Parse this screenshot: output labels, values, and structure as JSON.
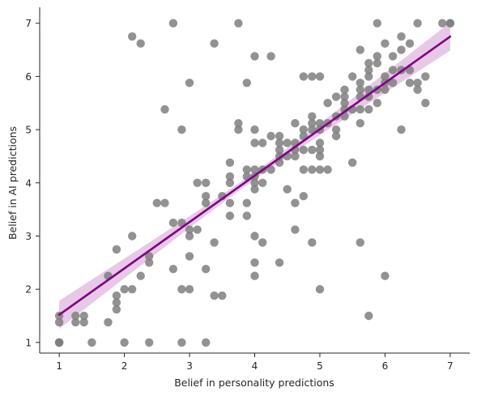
{
  "chart_data": {
    "type": "scatter",
    "title": "",
    "xlabel": "Belief in personality predictions",
    "ylabel": "Belief in AI predictions",
    "xlim": [
      0.7,
      7.3
    ],
    "ylim": [
      0.8,
      7.3
    ],
    "xticks": [
      1,
      2,
      3,
      4,
      5,
      6,
      7
    ],
    "yticks": [
      1,
      2,
      3,
      4,
      5,
      6,
      7
    ],
    "grid": false,
    "legend": "none",
    "colors": {
      "points": "#7f7f7f",
      "regression_line": "#800080",
      "confidence_band": "#dfb7df",
      "axis": "#262626"
    },
    "series": [
      {
        "values": [
          [
            1,
            1
          ],
          [
            1,
            1
          ],
          [
            1,
            1
          ],
          [
            1,
            1.38
          ],
          [
            1,
            1.5
          ],
          [
            1.25,
            1.38
          ],
          [
            1.25,
            1.5
          ],
          [
            1.38,
            1.38
          ],
          [
            1.38,
            1.5
          ],
          [
            1.5,
            1
          ],
          [
            1.75,
            1.38
          ],
          [
            1.75,
            2.25
          ],
          [
            1.88,
            1.62
          ],
          [
            1.88,
            1.75
          ],
          [
            1.88,
            1.88
          ],
          [
            1.88,
            2.75
          ],
          [
            2,
            1
          ],
          [
            2,
            2
          ],
          [
            2.12,
            2
          ],
          [
            2.12,
            3
          ],
          [
            2.12,
            6.75
          ],
          [
            2.25,
            2.25
          ],
          [
            2.25,
            6.62
          ],
          [
            2.38,
            1
          ],
          [
            2.38,
            2.5
          ],
          [
            2.38,
            2.62
          ],
          [
            2.5,
            3.62
          ],
          [
            2.62,
            3.62
          ],
          [
            2.62,
            5.38
          ],
          [
            2.75,
            2.38
          ],
          [
            2.75,
            3.25
          ],
          [
            2.75,
            7
          ],
          [
            2.88,
            1
          ],
          [
            2.88,
            2
          ],
          [
            2.88,
            3.25
          ],
          [
            2.88,
            5
          ],
          [
            3,
            2
          ],
          [
            3,
            2.62
          ],
          [
            3,
            3
          ],
          [
            3,
            3.12
          ],
          [
            3,
            5.88
          ],
          [
            3.12,
            3.12
          ],
          [
            3.12,
            4
          ],
          [
            3.25,
            1
          ],
          [
            3.25,
            2.38
          ],
          [
            3.25,
            3.62
          ],
          [
            3.25,
            3.75
          ],
          [
            3.25,
            4
          ],
          [
            3.38,
            1.88
          ],
          [
            3.38,
            2.88
          ],
          [
            3.38,
            6.62
          ],
          [
            3.5,
            1.88
          ],
          [
            3.5,
            3.75
          ],
          [
            3.62,
            3.38
          ],
          [
            3.62,
            3.62
          ],
          [
            3.62,
            4
          ],
          [
            3.62,
            4.12
          ],
          [
            3.62,
            4.38
          ],
          [
            3.75,
            5
          ],
          [
            3.75,
            5.12
          ],
          [
            3.75,
            7
          ],
          [
            3.88,
            3.38
          ],
          [
            3.88,
            3.62
          ],
          [
            3.88,
            4.12
          ],
          [
            3.88,
            4.25
          ],
          [
            3.88,
            5.88
          ],
          [
            4,
            2.25
          ],
          [
            4,
            2.5
          ],
          [
            4,
            3
          ],
          [
            4,
            3.88
          ],
          [
            4,
            4
          ],
          [
            4,
            4.12
          ],
          [
            4,
            4.25
          ],
          [
            4,
            4.75
          ],
          [
            4,
            5
          ],
          [
            4,
            6.38
          ],
          [
            4.12,
            2.88
          ],
          [
            4.12,
            4
          ],
          [
            4.12,
            4.25
          ],
          [
            4.12,
            4.75
          ],
          [
            4.25,
            4.25
          ],
          [
            4.25,
            4.88
          ],
          [
            4.25,
            6.38
          ],
          [
            4.38,
            2.5
          ],
          [
            4.38,
            4.38
          ],
          [
            4.38,
            4.5
          ],
          [
            4.38,
            4.62
          ],
          [
            4.38,
            4.75
          ],
          [
            4.38,
            4.88
          ],
          [
            4.5,
            3.88
          ],
          [
            4.5,
            4.5
          ],
          [
            4.5,
            4.75
          ],
          [
            4.62,
            3.12
          ],
          [
            4.62,
            3.62
          ],
          [
            4.62,
            4.5
          ],
          [
            4.62,
            4.62
          ],
          [
            4.62,
            4.75
          ],
          [
            4.62,
            5.12
          ],
          [
            4.75,
            3.75
          ],
          [
            4.75,
            4.25
          ],
          [
            4.75,
            4.62
          ],
          [
            4.75,
            4.88
          ],
          [
            4.75,
            5
          ],
          [
            4.75,
            6
          ],
          [
            4.88,
            2.88
          ],
          [
            4.88,
            4.25
          ],
          [
            4.88,
            4.62
          ],
          [
            4.88,
            5
          ],
          [
            4.88,
            5.12
          ],
          [
            4.88,
            5.25
          ],
          [
            4.88,
            6
          ],
          [
            5,
            2
          ],
          [
            5,
            4.25
          ],
          [
            5,
            4.5
          ],
          [
            5,
            4.62
          ],
          [
            5,
            4.75
          ],
          [
            5,
            5
          ],
          [
            5,
            5.12
          ],
          [
            5,
            6
          ],
          [
            5.12,
            4.25
          ],
          [
            5.12,
            5.12
          ],
          [
            5.12,
            5.5
          ],
          [
            5.25,
            4.88
          ],
          [
            5.25,
            5
          ],
          [
            5.25,
            5.25
          ],
          [
            5.25,
            5.62
          ],
          [
            5.38,
            5.25
          ],
          [
            5.38,
            5.38
          ],
          [
            5.38,
            5.5
          ],
          [
            5.38,
            5.62
          ],
          [
            5.38,
            5.75
          ],
          [
            5.5,
            4.38
          ],
          [
            5.5,
            5.38
          ],
          [
            5.5,
            6
          ],
          [
            5.62,
            2.88
          ],
          [
            5.62,
            5.12
          ],
          [
            5.62,
            5.38
          ],
          [
            5.62,
            5.62
          ],
          [
            5.62,
            5.75
          ],
          [
            5.62,
            5.88
          ],
          [
            5.62,
            6.5
          ],
          [
            5.75,
            1.5
          ],
          [
            5.75,
            5.38
          ],
          [
            5.75,
            5.62
          ],
          [
            5.75,
            5.75
          ],
          [
            5.75,
            6
          ],
          [
            5.75,
            6.12
          ],
          [
            5.75,
            6.25
          ],
          [
            5.88,
            5.5
          ],
          [
            5.88,
            5.75
          ],
          [
            5.88,
            6.25
          ],
          [
            5.88,
            6.38
          ],
          [
            5.88,
            7
          ],
          [
            6,
            2.25
          ],
          [
            6,
            5.75
          ],
          [
            6,
            5.88
          ],
          [
            6,
            6
          ],
          [
            6,
            6.62
          ],
          [
            6.12,
            5.88
          ],
          [
            6.12,
            6.12
          ],
          [
            6.12,
            6.38
          ],
          [
            6.25,
            5
          ],
          [
            6.25,
            6.12
          ],
          [
            6.25,
            6.5
          ],
          [
            6.25,
            6.75
          ],
          [
            6.38,
            5.88
          ],
          [
            6.38,
            6.12
          ],
          [
            6.38,
            6.62
          ],
          [
            6.5,
            5.75
          ],
          [
            6.5,
            5.88
          ],
          [
            6.5,
            7
          ],
          [
            6.62,
            5.5
          ],
          [
            6.62,
            6
          ],
          [
            6.88,
            7
          ],
          [
            7,
            7
          ],
          [
            7,
            7
          ]
        ]
      }
    ],
    "regression": {
      "x": [
        1,
        7
      ],
      "y": [
        1.52,
        6.75
      ],
      "ci_lower": [
        1.22,
        6.52
      ],
      "ci_upper": [
        1.82,
        6.98
      ]
    }
  }
}
